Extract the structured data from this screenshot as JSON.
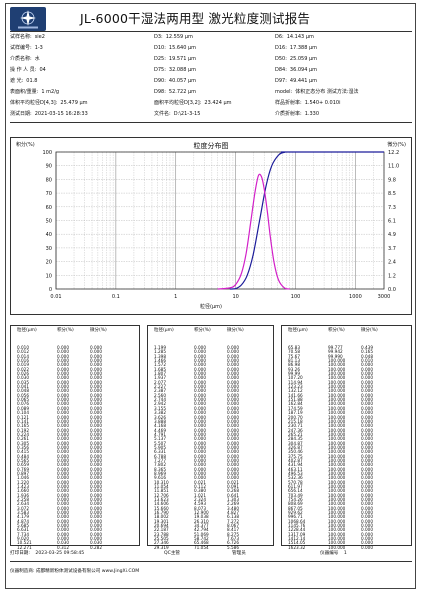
{
  "header": {
    "title": "JL-6000干湿法两用型 激光粒度测试报告"
  },
  "info": {
    "col1": [
      {
        "label": "试样名称:",
        "value": "sie2"
      },
      {
        "label": "试样编号:",
        "value": "1-3"
      },
      {
        "label": "介质名称:",
        "value": "水"
      },
      {
        "label": "操 作 人 员:",
        "value": "04"
      },
      {
        "label": "遮    光:",
        "value": "01.8"
      },
      {
        "label": "表面积/重量:",
        "value": "1  m2/g"
      },
      {
        "label": "体积平均粒径D[4,3]:",
        "value": "25.479  μm"
      },
      {
        "label": "测试日期:",
        "value": "2021-03-15 16:28:33"
      }
    ],
    "col2": [
      {
        "label": "D3:",
        "value": "12.559  μm"
      },
      {
        "label": "D10:",
        "value": "15.640  μm"
      },
      {
        "label": "D25:",
        "value": "19.571  μm"
      },
      {
        "label": "D75:",
        "value": "32.088  μm"
      },
      {
        "label": "D90:",
        "value": "40.057  μm"
      },
      {
        "label": "D98:",
        "value": "52.722  μm"
      },
      {
        "label": "面积平均粒径D[3,2]:",
        "value": "23.424  μm"
      },
      {
        "label": "文件名:",
        "value": "D:\\21-3-15"
      }
    ],
    "col3": [
      {
        "label": "D6:",
        "value": "14.143  μm"
      },
      {
        "label": "D16:",
        "value": "17.388  μm"
      },
      {
        "label": "D50:",
        "value": "25.059  μm"
      },
      {
        "label": "D84:",
        "value": "36.094  μm"
      },
      {
        "label": "D97:",
        "value": "49.441  μm"
      },
      {
        "label": "model:",
        "value": "体积正态分布  测试方法:湿法"
      },
      {
        "label": "样品折射率:",
        "value": "1.540+ 0.010i"
      },
      {
        "label": "介质折射率:",
        "value": "1.330"
      }
    ]
  },
  "chart_data": {
    "type": "line",
    "title": "粒度分布图",
    "xlabel": "粒径(μm)",
    "ylabel_left": "积分(%)",
    "ylabel_right": "微分(%)",
    "x_scale": "log",
    "xlim": [
      0.01,
      3000
    ],
    "x_ticks": [
      "0.01",
      "0.1",
      "1",
      "10",
      "100",
      "1000",
      "3000"
    ],
    "ylim_left": [
      0,
      100
    ],
    "y_ticks_left": [
      "100",
      "90",
      "80",
      "70",
      "60",
      "50",
      "40",
      "30",
      "20",
      "10",
      "0"
    ],
    "ylim_right": [
      0,
      12.2
    ],
    "y_ticks_right": [
      "12.2",
      "11.0",
      "9.8",
      "8.5",
      "7.3",
      "6.1",
      "4.9",
      "3.7",
      "2.4",
      "1.2",
      "0.0"
    ],
    "grid": true,
    "colors": {
      "cumulative": "#1c1c9a",
      "differential": "#d21fc8"
    },
    "series": [
      {
        "x": [
          8,
          10,
          12.5,
          15.6,
          19.6,
          25.1,
          32.1,
          40.1,
          52.7,
          65.8,
          80,
          3000
        ],
        "values": [
          0,
          0.3,
          3,
          10,
          25,
          50,
          75,
          90,
          98,
          99.8,
          100,
          100
        ]
      },
      {
        "x": [
          5,
          8,
          10,
          12.5,
          15,
          18,
          21,
          24,
          27,
          30,
          34,
          38,
          44,
          52,
          65,
          80
        ],
        "values": [
          0,
          0.1,
          0.4,
          1.4,
          3.2,
          6.1,
          8.6,
          10.1,
          10.0,
          8.9,
          6.8,
          4.6,
          2.3,
          0.8,
          0.1,
          0
        ]
      }
    ]
  },
  "table": {
    "headers": [
      "粒径(μm)",
      "积分(%)",
      "微分(%)"
    ],
    "col1": [
      [
        "0.010",
        "0.000",
        "0.000"
      ],
      [
        "0.012",
        "0.000",
        "0.000"
      ],
      [
        "0.014",
        "0.000",
        "0.000"
      ],
      [
        "0.016",
        "0.000",
        "0.000"
      ],
      [
        "0.019",
        "0.000",
        "0.000"
      ],
      [
        "0.022",
        "0.000",
        "0.000"
      ],
      [
        "0.026",
        "0.000",
        "0.000"
      ],
      [
        "0.030",
        "0.000",
        "0.000"
      ],
      [
        "0.035",
        "0.000",
        "0.000"
      ],
      [
        "0.041",
        "0.000",
        "0.000"
      ],
      [
        "0.048",
        "0.000",
        "0.000"
      ],
      [
        "0.056",
        "0.000",
        "0.000"
      ],
      [
        "0.065",
        "0.000",
        "0.000"
      ],
      [
        "0.076",
        "0.000",
        "0.000"
      ],
      [
        "0.089",
        "0.000",
        "0.000"
      ],
      [
        "0.104",
        "0.000",
        "0.000"
      ],
      [
        "0.121",
        "0.000",
        "0.000"
      ],
      [
        "0.141",
        "0.000",
        "0.000"
      ],
      [
        "0.165",
        "0.000",
        "0.000"
      ],
      [
        "0.192",
        "0.000",
        "0.000"
      ],
      [
        "0.224",
        "0.000",
        "0.000"
      ],
      [
        "0.261",
        "0.000",
        "0.000"
      ],
      [
        "0.305",
        "0.000",
        "0.000"
      ],
      [
        "0.356",
        "0.000",
        "0.000"
      ],
      [
        "0.415",
        "0.000",
        "0.000"
      ],
      [
        "0.484",
        "0.000",
        "0.000"
      ],
      [
        "0.565",
        "0.000",
        "0.000"
      ],
      [
        "0.659",
        "0.000",
        "0.000"
      ],
      [
        "0.769",
        "0.000",
        "0.000"
      ],
      [
        "0.897",
        "0.000",
        "0.000"
      ],
      [
        "1.046",
        "0.000",
        "0.000"
      ],
      [
        "1.220",
        "0.000",
        "0.000"
      ],
      [
        "1.423",
        "0.000",
        "0.000"
      ],
      [
        "1.660",
        "0.000",
        "0.000"
      ],
      [
        "1.936",
        "0.000",
        "0.000"
      ],
      [
        "2.258",
        "0.000",
        "0.000"
      ],
      [
        "2.634",
        "0.000",
        "0.000"
      ],
      [
        "3.072",
        "0.000",
        "0.000"
      ],
      [
        "3.583",
        "0.000",
        "0.000"
      ],
      [
        "4.179",
        "0.000",
        "0.000"
      ],
      [
        "4.874",
        "0.000",
        "0.000"
      ],
      [
        "5.685",
        "0.000",
        "0.000"
      ],
      [
        "6.631",
        "0.000",
        "0.000"
      ],
      [
        "7.734",
        "0.000",
        "0.000"
      ],
      [
        "9.020",
        "0.000",
        "0.000"
      ],
      [
        "10.521",
        "0.030",
        "0.030"
      ],
      [
        "12.271",
        "0.312",
        "0.282"
      ]
    ],
    "col2": [
      [
        "1.199",
        "0.000",
        "0.000"
      ],
      [
        "1.285",
        "0.000",
        "0.000"
      ],
      [
        "1.398",
        "0.000",
        "0.000"
      ],
      [
        "1.466",
        "0.000",
        "0.000"
      ],
      [
        "1.572",
        "0.000",
        "0.000"
      ],
      [
        "1.685",
        "0.000",
        "0.000"
      ],
      [
        "1.807",
        "0.000",
        "0.000"
      ],
      [
        "1.937",
        "0.000",
        "0.000"
      ],
      [
        "2.077",
        "0.000",
        "0.000"
      ],
      [
        "2.227",
        "0.000",
        "0.000"
      ],
      [
        "2.387",
        "0.000",
        "0.000"
      ],
      [
        "2.560",
        "0.000",
        "0.000"
      ],
      [
        "2.744",
        "0.000",
        "0.000"
      ],
      [
        "2.942",
        "0.000",
        "0.000"
      ],
      [
        "3.155",
        "0.000",
        "0.000"
      ],
      [
        "3.382",
        "0.000",
        "0.000"
      ],
      [
        "3.626",
        "0.000",
        "0.000"
      ],
      [
        "3.888",
        "0.000",
        "0.000"
      ],
      [
        "4.168",
        "0.000",
        "0.000"
      ],
      [
        "4.469",
        "0.000",
        "0.000"
      ],
      [
        "4.791",
        "0.000",
        "0.000"
      ],
      [
        "5.137",
        "0.000",
        "0.000"
      ],
      [
        "5.507",
        "0.000",
        "0.000"
      ],
      [
        "5.905",
        "0.000",
        "0.000"
      ],
      [
        "6.331",
        "0.000",
        "0.000"
      ],
      [
        "6.788",
        "0.000",
        "0.000"
      ],
      [
        "7.277",
        "0.000",
        "0.000"
      ],
      [
        "7.802",
        "0.000",
        "0.000"
      ],
      [
        "8.365",
        "0.000",
        "0.000"
      ],
      [
        "8.969",
        "0.000",
        "0.000"
      ],
      [
        "9.616",
        "0.000",
        "0.000"
      ],
      [
        "10.310",
        "0.021",
        "0.021"
      ],
      [
        "11.054",
        "0.112",
        "0.091"
      ],
      [
        "11.851",
        "0.380",
        "0.268"
      ],
      [
        "12.706",
        "1.021",
        "0.641"
      ],
      [
        "13.623",
        "2.324",
        "1.303"
      ],
      [
        "14.606",
        "4.593",
        "2.269"
      ],
      [
        "15.660",
        "8.073",
        "3.480"
      ],
      [
        "16.790",
        "12.900",
        "4.827"
      ],
      [
        "18.002",
        "19.038",
        "6.138"
      ],
      [
        "19.301",
        "26.310",
        "7.272"
      ],
      [
        "20.694",
        "34.377",
        "8.067"
      ],
      [
        "22.187",
        "42.794",
        "8.417"
      ],
      [
        "23.788",
        "51.069",
        "8.275"
      ],
      [
        "25.505",
        "58.742",
        "7.673"
      ],
      [
        "27.346",
        "65.468",
        "6.726"
      ],
      [
        "29.319",
        "71.054",
        "5.586"
      ]
    ],
    "col3": [
      [
        "65.83",
        "99.777",
        "0.439"
      ],
      [
        "70.58",
        "99.942",
        "0.165"
      ],
      [
        "75.67",
        "99.990",
        "0.048"
      ],
      [
        "81.13",
        "100.000",
        "0.010"
      ],
      [
        "86.98",
        "100.000",
        "0.000"
      ],
      [
        "93.26",
        "100.000",
        "0.000"
      ],
      [
        "99.99",
        "100.000",
        "0.000"
      ],
      [
        "107.20",
        "100.000",
        "0.000"
      ],
      [
        "114.94",
        "100.000",
        "0.000"
      ],
      [
        "123.23",
        "100.000",
        "0.000"
      ],
      [
        "132.12",
        "100.000",
        "0.000"
      ],
      [
        "141.66",
        "100.000",
        "0.000"
      ],
      [
        "151.88",
        "100.000",
        "0.000"
      ],
      [
        "162.84",
        "100.000",
        "0.000"
      ],
      [
        "174.59",
        "100.000",
        "0.000"
      ],
      [
        "187.19",
        "100.000",
        "0.000"
      ],
      [
        "200.70",
        "100.000",
        "0.000"
      ],
      [
        "215.18",
        "100.000",
        "0.000"
      ],
      [
        "230.71",
        "100.000",
        "0.000"
      ],
      [
        "247.36",
        "100.000",
        "0.000"
      ],
      [
        "265.21",
        "100.000",
        "0.000"
      ],
      [
        "284.35",
        "100.000",
        "0.000"
      ],
      [
        "304.87",
        "100.000",
        "0.000"
      ],
      [
        "326.87",
        "100.000",
        "0.000"
      ],
      [
        "350.46",
        "100.000",
        "0.000"
      ],
      [
        "375.75",
        "100.000",
        "0.000"
      ],
      [
        "402.87",
        "100.000",
        "0.000"
      ],
      [
        "431.94",
        "100.000",
        "0.000"
      ],
      [
        "463.11",
        "100.000",
        "0.000"
      ],
      [
        "496.53",
        "100.000",
        "0.000"
      ],
      [
        "532.36",
        "100.000",
        "0.000"
      ],
      [
        "570.78",
        "100.000",
        "0.000"
      ],
      [
        "611.97",
        "100.000",
        "0.000"
      ],
      [
        "656.14",
        "100.000",
        "0.000"
      ],
      [
        "703.49",
        "100.000",
        "0.000"
      ],
      [
        "754.26",
        "100.000",
        "0.000"
      ],
      [
        "808.69",
        "100.000",
        "0.000"
      ],
      [
        "867.05",
        "100.000",
        "0.000"
      ],
      [
        "929.62",
        "100.000",
        "0.000"
      ],
      [
        "996.71",
        "100.000",
        "0.000"
      ],
      [
        "1068.64",
        "100.000",
        "0.000"
      ],
      [
        "1145.76",
        "100.000",
        "0.000"
      ],
      [
        "1228.44",
        "100.000",
        "0.000"
      ],
      [
        "1317.09",
        "100.000",
        "0.000"
      ],
      [
        "1412.14",
        "100.000",
        "0.000"
      ],
      [
        "1514.05",
        "100.000",
        "0.000"
      ],
      [
        "1623.32",
        "100.000",
        "0.000"
      ]
    ]
  },
  "footer": {
    "print_date_label": "打印日期:",
    "print_date": "2023-03-25 09:58:45",
    "qc_label": "QC主管",
    "admin_label": "管理员",
    "instrument_label": "仪器编号",
    "instrument_number": "1",
    "maker": "仪器制造商: 成都精新粉体测试设备有限公司 www.JingXi.COM"
  }
}
